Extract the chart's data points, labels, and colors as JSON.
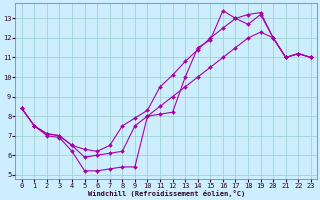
{
  "xlabel": "Windchill (Refroidissement éolien,°C)",
  "bg_color": "#cceeff",
  "line_color": "#aa00aa",
  "grid_color": "#99cccc",
  "xlim": [
    -0.5,
    23.5
  ],
  "ylim": [
    4.8,
    13.8
  ],
  "yticks": [
    5,
    6,
    7,
    8,
    9,
    10,
    11,
    12,
    13
  ],
  "xticks": [
    0,
    1,
    2,
    3,
    4,
    5,
    6,
    7,
    8,
    9,
    10,
    11,
    12,
    13,
    14,
    15,
    16,
    17,
    18,
    19,
    20,
    21,
    22,
    23
  ],
  "series1_x": [
    0,
    1,
    2,
    3,
    4,
    5,
    6,
    7,
    8,
    9,
    10,
    11,
    12,
    13,
    14,
    15,
    16,
    17,
    18,
    19,
    20,
    21,
    22,
    23
  ],
  "series1_y": [
    8.4,
    7.5,
    7.0,
    6.9,
    6.2,
    5.2,
    5.2,
    5.3,
    5.4,
    5.4,
    8.0,
    8.1,
    8.2,
    10.0,
    11.5,
    11.9,
    13.4,
    13.0,
    12.7,
    13.2,
    12.0,
    11.0,
    11.2,
    11.0
  ],
  "series2_x": [
    0,
    1,
    2,
    3,
    4,
    5,
    6,
    7,
    8,
    9,
    10,
    11,
    12,
    13,
    14,
    15,
    16,
    17,
    18,
    19,
    20,
    21,
    22,
    23
  ],
  "series2_y": [
    8.4,
    7.5,
    7.1,
    7.0,
    6.5,
    6.3,
    6.2,
    6.5,
    7.5,
    7.9,
    8.3,
    9.5,
    10.1,
    10.8,
    11.4,
    12.0,
    12.5,
    13.0,
    13.2,
    13.3,
    12.0,
    11.0,
    11.2,
    11.0
  ],
  "series3_x": [
    0,
    1,
    2,
    3,
    4,
    5,
    6,
    7,
    8,
    9,
    10,
    11,
    12,
    13,
    14,
    15,
    16,
    17,
    18,
    19,
    20,
    21,
    22,
    23
  ],
  "series3_y": [
    8.4,
    7.5,
    7.1,
    7.0,
    6.5,
    5.9,
    6.0,
    6.1,
    6.2,
    7.5,
    8.0,
    8.5,
    9.0,
    9.5,
    10.0,
    10.5,
    11.0,
    11.5,
    12.0,
    12.3,
    12.0,
    11.0,
    11.2,
    11.0
  ]
}
